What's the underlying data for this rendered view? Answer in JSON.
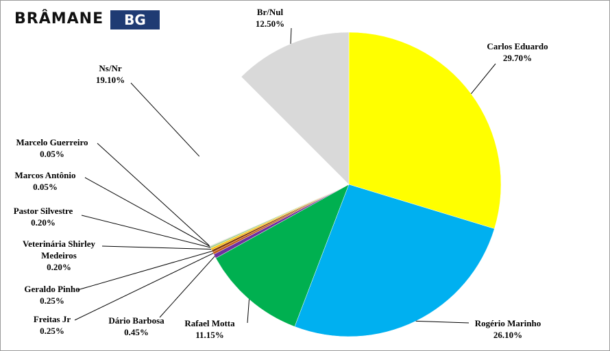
{
  "logo": {
    "brand": "BRÂMANE",
    "badge": "BG"
  },
  "chart_data": {
    "type": "pie",
    "categories": [
      "Carlos Eduardo",
      "Rogério Marinho",
      "Rafael Motta",
      "Dário Barbosa",
      "Freitas Jr",
      "Geraldo Pinho",
      "Veterinária Shirley Medeiros",
      "Pastor Silvestre",
      "Marcos Antônio",
      "Marcelo Guerreiro",
      "Ns/Nr",
      "Br/Nul"
    ],
    "values": [
      29.7,
      26.1,
      11.15,
      0.45,
      0.25,
      0.25,
      0.2,
      0.2,
      0.05,
      0.05,
      19.1,
      12.5
    ],
    "value_labels": [
      "29.70%",
      "26.10%",
      "11.15%",
      "0.45%",
      "0.25%",
      "0.25%",
      "0.20%",
      "0.20%",
      "0.05%",
      "0.05%",
      "19.10%",
      "12.50%"
    ],
    "colors": [
      "#ffff00",
      "#00b0f0",
      "#00b050",
      "#7030a0",
      "#c55a11",
      "#833c0b",
      "#ffc000",
      "#a9d18e",
      "#4472c4",
      "#f4b183",
      "#ffffff",
      "#d9d9d9"
    ]
  }
}
